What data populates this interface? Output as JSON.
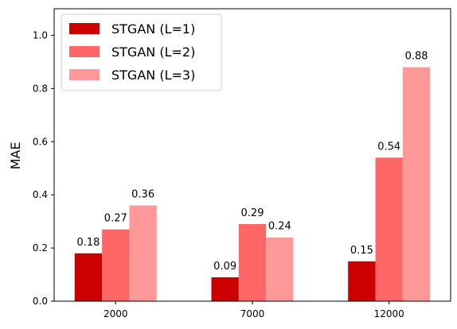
{
  "chart_data": {
    "type": "bar",
    "title": "",
    "xlabel": "",
    "ylabel": "MAE",
    "categories": [
      "2000",
      "7000",
      "12000"
    ],
    "series": [
      {
        "name": "STGAN (L=1)",
        "color": "#cc0000",
        "values": [
          0.18,
          0.09,
          0.15
        ]
      },
      {
        "name": "STGAN (L=2)",
        "color": "#ff6666",
        "values": [
          0.27,
          0.29,
          0.54
        ]
      },
      {
        "name": "STGAN (L=3)",
        "color": "#ff9999",
        "values": [
          0.36,
          0.24,
          0.88
        ]
      }
    ],
    "data_labels": [
      [
        "0.18",
        "0.09",
        "0.15"
      ],
      [
        "0.27",
        "0.29",
        "0.54"
      ],
      [
        "0.36",
        "0.24",
        "0.88"
      ]
    ],
    "ylim": [
      0,
      1.1
    ],
    "yticks": [
      0.0,
      0.2,
      0.4,
      0.6,
      0.8,
      1.0
    ],
    "ytick_labels": [
      "0.0",
      "0.2",
      "0.4",
      "0.6",
      "0.8",
      "1.0"
    ],
    "grid": false,
    "legend_position": "top-left"
  }
}
